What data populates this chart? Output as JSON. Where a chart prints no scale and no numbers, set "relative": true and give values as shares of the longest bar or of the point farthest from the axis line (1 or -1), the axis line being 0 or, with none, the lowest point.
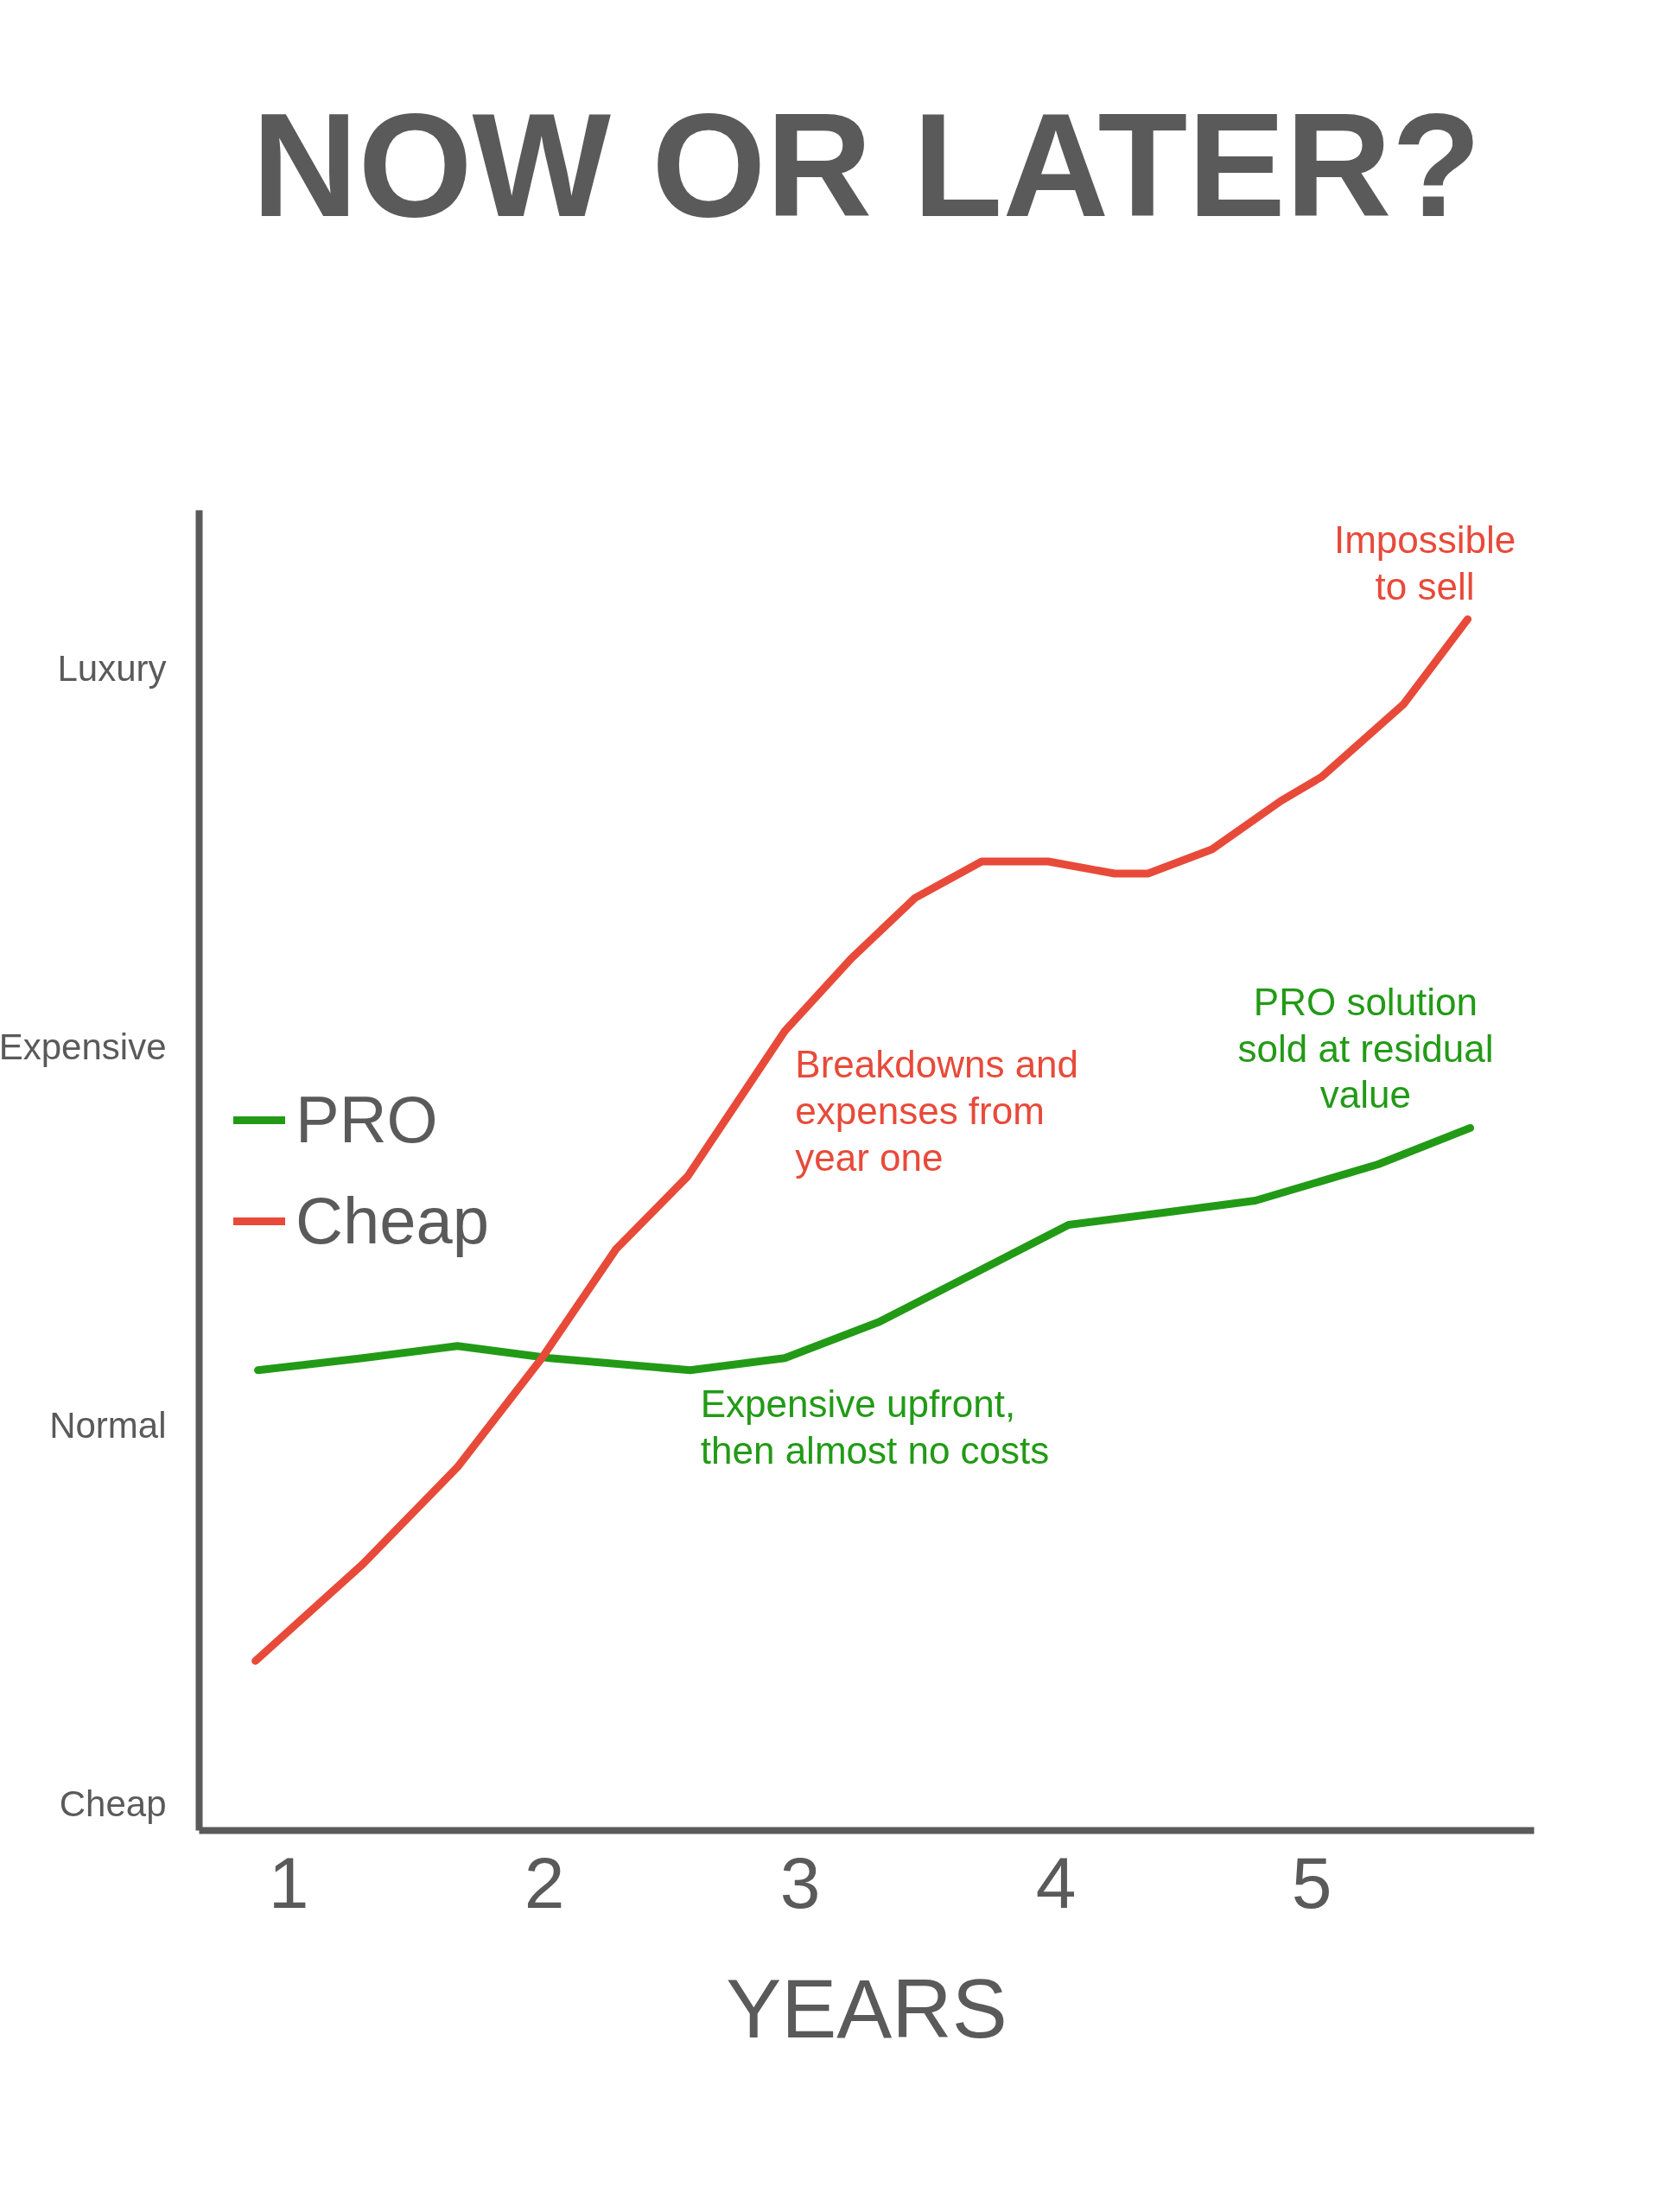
{
  "chart_data": {
    "type": "line",
    "relative": true,
    "title": "NOW OR LATER?",
    "xlabel": "YEARS",
    "xlim": [
      0.65,
      5.87
    ],
    "xticks": [
      1,
      2,
      3,
      4,
      5
    ],
    "legend": "left",
    "line_style": "solid",
    "series": [
      {
        "name": "PRO",
        "color": "#229a16",
        "x": [
          0.88,
          1.29,
          1.66,
          2.02,
          2.57,
          2.94,
          3.31,
          3.68,
          4.05,
          4.42,
          4.78,
          5.26,
          5.62
        ],
        "values": [
          0.38,
          0.39,
          0.4,
          0.39,
          0.38,
          0.39,
          0.42,
          0.46,
          0.5,
          0.51,
          0.52,
          0.55,
          0.58
        ]
      },
      {
        "name": "Cheap",
        "color": "#e84a3a",
        "x": [
          0.87,
          1.29,
          1.66,
          1.99,
          2.28,
          2.56,
          2.94,
          3.2,
          3.45,
          3.71,
          3.97,
          4.23,
          4.36,
          4.61,
          4.88,
          5.04,
          5.36,
          5.61
        ],
        "values": [
          0.14,
          0.22,
          0.3,
          0.39,
          0.48,
          0.54,
          0.66,
          0.72,
          0.77,
          0.8,
          0.8,
          0.79,
          0.79,
          0.81,
          0.85,
          0.87,
          0.93,
          1
        ]
      }
    ],
    "annotations": [
      "Luxury",
      "Expensive",
      "Normal",
      "Cheap",
      {
        "text": "Impossible\nto sell",
        "x": 5.61,
        "y": 1
      },
      {
        "text": "Breakdowns and\nexpenses from\nyear one",
        "x": 2.94,
        "y": 0.66
      },
      {
        "text": "PRO solution\nsold at residual\nvalue",
        "x": 5.62,
        "y": 0.58
      },
      {
        "text": "Expensive upfront,\nthen almost no costs",
        "x": 2.57,
        "y": 0.38
      }
    ]
  }
}
